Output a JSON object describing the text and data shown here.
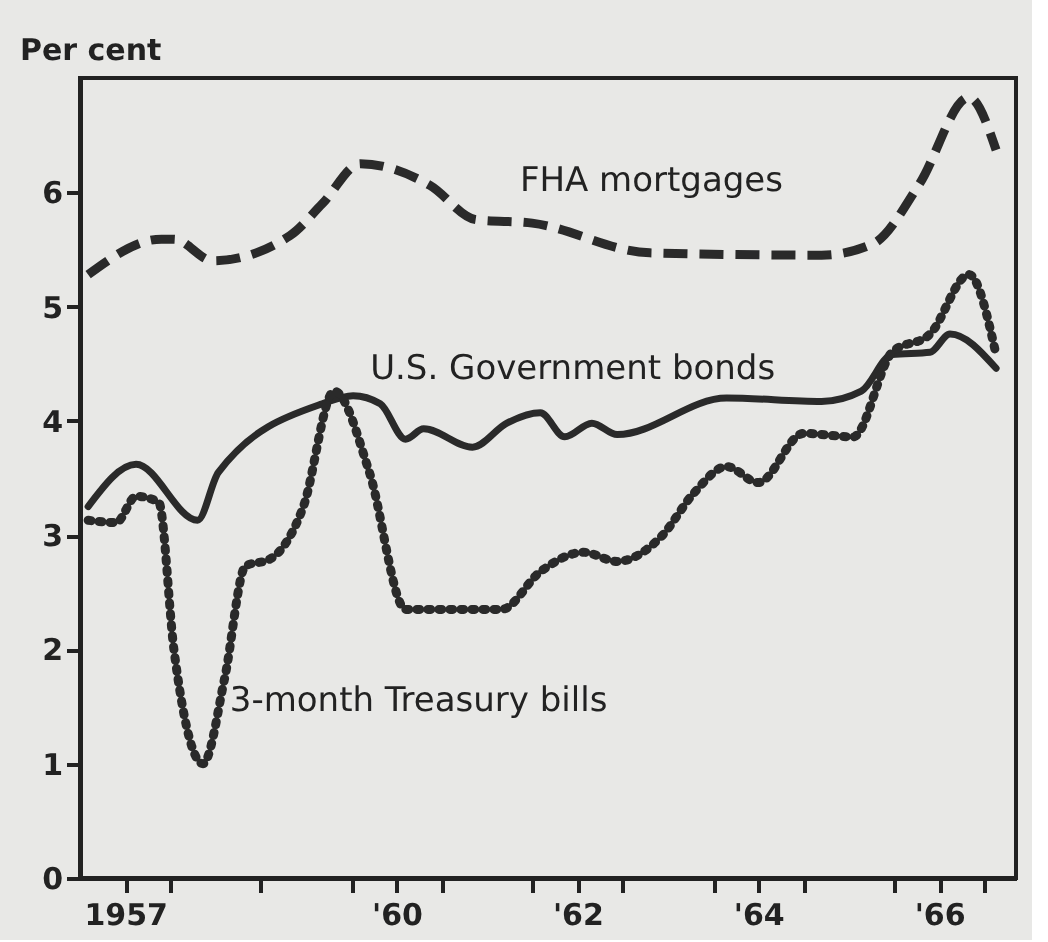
{
  "chart_data": {
    "type": "line",
    "ylabel": "Per cent",
    "xlim": [
      1956.5,
      1966.85
    ],
    "ylim": [
      0,
      7
    ],
    "yticks": [
      0,
      1,
      2,
      3,
      4,
      5,
      6
    ],
    "xticks": [
      {
        "value": 1957,
        "label": "1957"
      },
      {
        "value": 1957.5,
        "label": null
      },
      {
        "value": 1958.5,
        "label": null
      },
      {
        "value": 1959.5,
        "label": null
      },
      {
        "value": 1960,
        "label": "'60"
      },
      {
        "value": 1960.5,
        "label": null
      },
      {
        "value": 1961.5,
        "label": null
      },
      {
        "value": 1962,
        "label": "'62"
      },
      {
        "value": 1962.5,
        "label": null
      },
      {
        "value": 1963.5,
        "label": null
      },
      {
        "value": 1964,
        "label": "'64"
      },
      {
        "value": 1964.5,
        "label": null
      },
      {
        "value": 1965.5,
        "label": null
      },
      {
        "value": 1966,
        "label": "'66"
      },
      {
        "value": 1966.5,
        "label": null
      }
    ],
    "grid": false,
    "marker": "none",
    "series": [
      {
        "name": "FHA mortgages",
        "color": "#2a2a2a",
        "line_style": "dashed",
        "x": [
          1956.59,
          1957.4,
          1957.54,
          1957.97,
          1958.82,
          1959.18,
          1959.6,
          1960.37,
          1960.88,
          1961.5,
          1962.8,
          1964.7,
          1965.27,
          1965.78,
          1966.33,
          1966.63
        ],
        "values": [
          5.28,
          5.59,
          5.59,
          5.4,
          5.62,
          5.9,
          6.25,
          6.06,
          5.76,
          5.73,
          5.47,
          5.45,
          5.55,
          6.07,
          6.83,
          6.37
        ]
      },
      {
        "name": "U.S. Government bonds",
        "color": "#2a2a2a",
        "line_style": "solid",
        "x": [
          1956.59,
          1957.12,
          1957.8,
          1958.03,
          1959.18,
          1959.52,
          1959.82,
          1960.1,
          1960.3,
          1960.84,
          1961.22,
          1961.59,
          1961.86,
          1962.16,
          1962.44,
          1963.65,
          1964.7,
          1965.14,
          1965.48,
          1965.9,
          1966.12,
          1966.63
        ],
        "values": [
          3.25,
          3.62,
          3.13,
          3.55,
          4.15,
          4.22,
          4.15,
          3.84,
          3.93,
          3.77,
          3.98,
          4.07,
          3.86,
          3.98,
          3.88,
          4.2,
          4.17,
          4.26,
          4.58,
          4.6,
          4.76,
          4.46
        ]
      },
      {
        "name": "3-month Treasury bills",
        "color": "#2a2a2a",
        "line_style": "dotted",
        "x": [
          1956.59,
          1956.9,
          1957.12,
          1957.37,
          1957.54,
          1957.86,
          1958.1,
          1958.33,
          1958.6,
          1958.97,
          1959.31,
          1959.7,
          1960.1,
          1961.16,
          1961.59,
          1962.07,
          1962.44,
          1962.93,
          1963.29,
          1963.65,
          1964.0,
          1964.5,
          1965.05,
          1965.48,
          1965.9,
          1966.33,
          1966.63
        ],
        "values": [
          3.13,
          3.11,
          3.34,
          3.29,
          1.99,
          1.0,
          1.75,
          2.73,
          2.79,
          3.25,
          4.26,
          3.55,
          2.35,
          2.35,
          2.68,
          2.85,
          2.77,
          2.99,
          3.37,
          3.6,
          3.46,
          3.89,
          3.86,
          4.6,
          4.76,
          5.28,
          4.58
        ]
      }
    ]
  }
}
